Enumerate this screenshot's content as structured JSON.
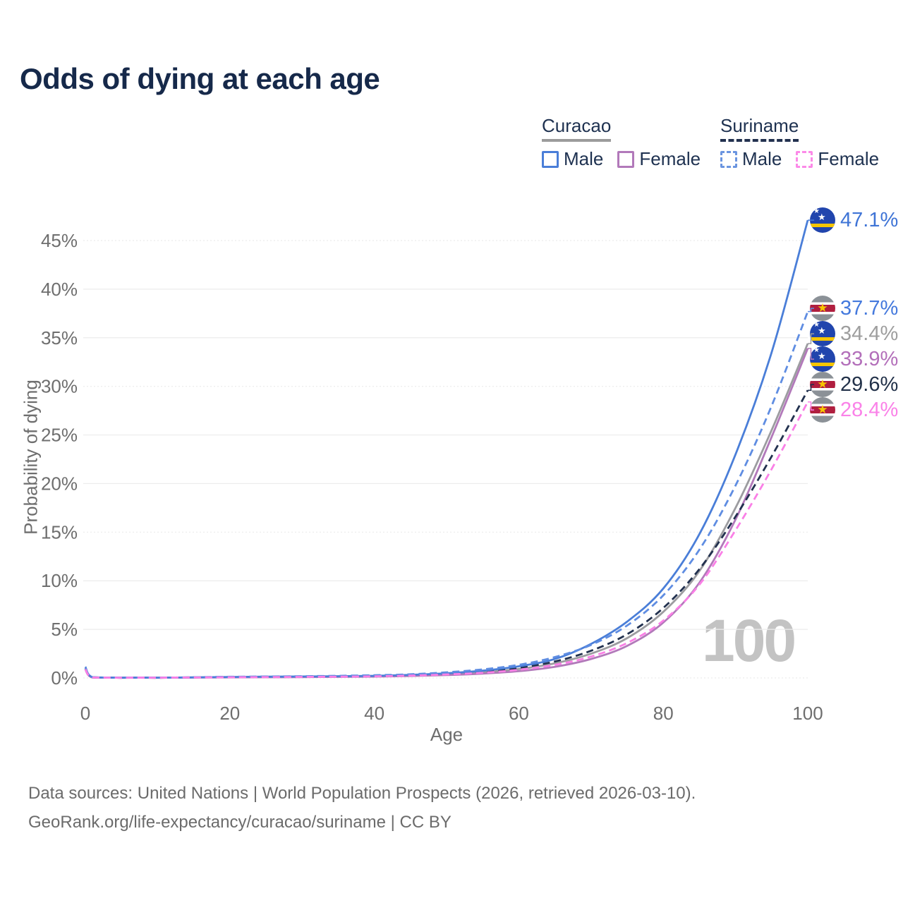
{
  "title": "Odds of dying at each age",
  "watermark": "100",
  "icons": {
    "star": "★",
    "curacao_flag": "curacao-flag-icon",
    "suriname_flag": "suriname-flag-icon"
  },
  "colors": {
    "title_text": "#16294a",
    "axis_text": "#6e6e6e",
    "gridline": "#ececec",
    "watermark": "#c3c3c3",
    "footer_text": "#6b6b6b",
    "curacao_male": "#4a7ed8",
    "curacao_female": "#b279ba",
    "curacao_total": "#9c9ca0",
    "suriname_male": "#5f8de2",
    "suriname_female": "#fa7fe6",
    "suriname_total": "#22314f"
  },
  "legend": {
    "groups": [
      {
        "name": "Curacao",
        "line": "solid",
        "underline_color": "#9b9b9b",
        "items": [
          {
            "label": "Male",
            "color": "#4a7ed8"
          },
          {
            "label": "Female",
            "color": "#b279ba"
          }
        ]
      },
      {
        "name": "Suriname",
        "line": "dashed",
        "underline_color": "#22314f",
        "items": [
          {
            "label": "Male",
            "color": "#6b95e0"
          },
          {
            "label": "Female",
            "color": "#fc8ae8"
          }
        ]
      }
    ]
  },
  "chart_data": {
    "type": "line",
    "title": "Odds of dying at each age",
    "xlabel": "Age",
    "ylabel": "Probability of dying",
    "xlim": [
      0,
      100
    ],
    "ylim_pct": [
      0,
      45
    ],
    "x_ticks": [
      0,
      20,
      40,
      60,
      80,
      100
    ],
    "y_ticks": [
      0,
      5,
      10,
      15,
      20,
      25,
      30,
      35,
      40,
      45
    ],
    "y_tick_suffix": "%",
    "grid": "horizontal",
    "legend_position": "top-right",
    "highlight_age": 100,
    "x": [
      0,
      1,
      5,
      10,
      15,
      20,
      25,
      30,
      35,
      40,
      45,
      50,
      55,
      60,
      65,
      70,
      75,
      80,
      85,
      90,
      95,
      100
    ],
    "series": [
      {
        "id": "curacao-total",
        "name": "Curacao",
        "group": "Curacao",
        "sex": "total",
        "line": "solid",
        "color": "#9c9ca0",
        "label_color": "#9e9e9e",
        "flag": "curacao",
        "end_label": "34.4%",
        "values": [
          1.0,
          0.06,
          0.02,
          0.02,
          0.05,
          0.08,
          0.1,
          0.12,
          0.14,
          0.18,
          0.25,
          0.38,
          0.58,
          0.92,
          1.5,
          2.5,
          4.1,
          6.8,
          11.0,
          17.5,
          25.5,
          34.4
        ]
      },
      {
        "id": "curacao-female",
        "name": "Curacao Female",
        "group": "Curacao",
        "sex": "female",
        "line": "solid",
        "color": "#b279ba",
        "label_color": "#b36fba",
        "flag": "curacao",
        "end_label": "33.9%",
        "values": [
          0.85,
          0.05,
          0.02,
          0.02,
          0.04,
          0.06,
          0.07,
          0.09,
          0.11,
          0.14,
          0.2,
          0.3,
          0.45,
          0.7,
          1.15,
          1.95,
          3.3,
          5.7,
          9.8,
          16.3,
          24.8,
          33.9
        ]
      },
      {
        "id": "suriname-total",
        "name": "Suriname",
        "group": "Suriname",
        "sex": "total",
        "line": "dashed",
        "color": "#22314f",
        "label_color": "#223149",
        "flag": "suriname",
        "end_label": "29.6%",
        "values": [
          0.95,
          0.06,
          0.02,
          0.02,
          0.06,
          0.1,
          0.12,
          0.15,
          0.18,
          0.22,
          0.3,
          0.45,
          0.68,
          1.05,
          1.7,
          2.8,
          4.5,
          7.2,
          11.2,
          16.6,
          22.8,
          29.6
        ]
      },
      {
        "id": "curacao-male",
        "name": "Curacao Male",
        "group": "Curacao",
        "sex": "male",
        "line": "solid",
        "color": "#4a7ed8",
        "label_color": "#3f74d6",
        "flag": "curacao",
        "end_label": "47.1%",
        "values": [
          1.15,
          0.08,
          0.03,
          0.03,
          0.06,
          0.1,
          0.13,
          0.15,
          0.18,
          0.22,
          0.32,
          0.48,
          0.75,
          1.2,
          1.95,
          3.5,
          5.8,
          9.2,
          14.8,
          23.0,
          33.5,
          47.1
        ]
      },
      {
        "id": "suriname-male",
        "name": "Suriname Male",
        "group": "Suriname",
        "sex": "male",
        "line": "dashed",
        "color": "#5f8de2",
        "label_color": "#4479dd",
        "flag": "suriname",
        "end_label": "37.7%",
        "values": [
          1.05,
          0.07,
          0.03,
          0.03,
          0.07,
          0.12,
          0.15,
          0.18,
          0.22,
          0.28,
          0.38,
          0.58,
          0.88,
          1.35,
          2.15,
          3.4,
          5.4,
          8.5,
          13.2,
          19.8,
          28.0,
          37.7
        ]
      },
      {
        "id": "suriname-female",
        "name": "Suriname Female",
        "group": "Suriname",
        "sex": "female",
        "line": "dashed",
        "color": "#fa7fe6",
        "label_color": "#fa82e8",
        "flag": "suriname",
        "end_label": "28.4%",
        "values": [
          0.9,
          0.05,
          0.02,
          0.02,
          0.05,
          0.07,
          0.09,
          0.11,
          0.13,
          0.17,
          0.24,
          0.36,
          0.54,
          0.84,
          1.35,
          2.2,
          3.6,
          5.9,
          9.6,
          15.2,
          21.5,
          28.4
        ]
      }
    ]
  },
  "footer": {
    "line1": "Data sources: United Nations | World Population Prospects (2026, retrieved 2026-03-10).",
    "line2": "GeoRank.org/life-expectancy/curacao/suriname | CC BY"
  }
}
